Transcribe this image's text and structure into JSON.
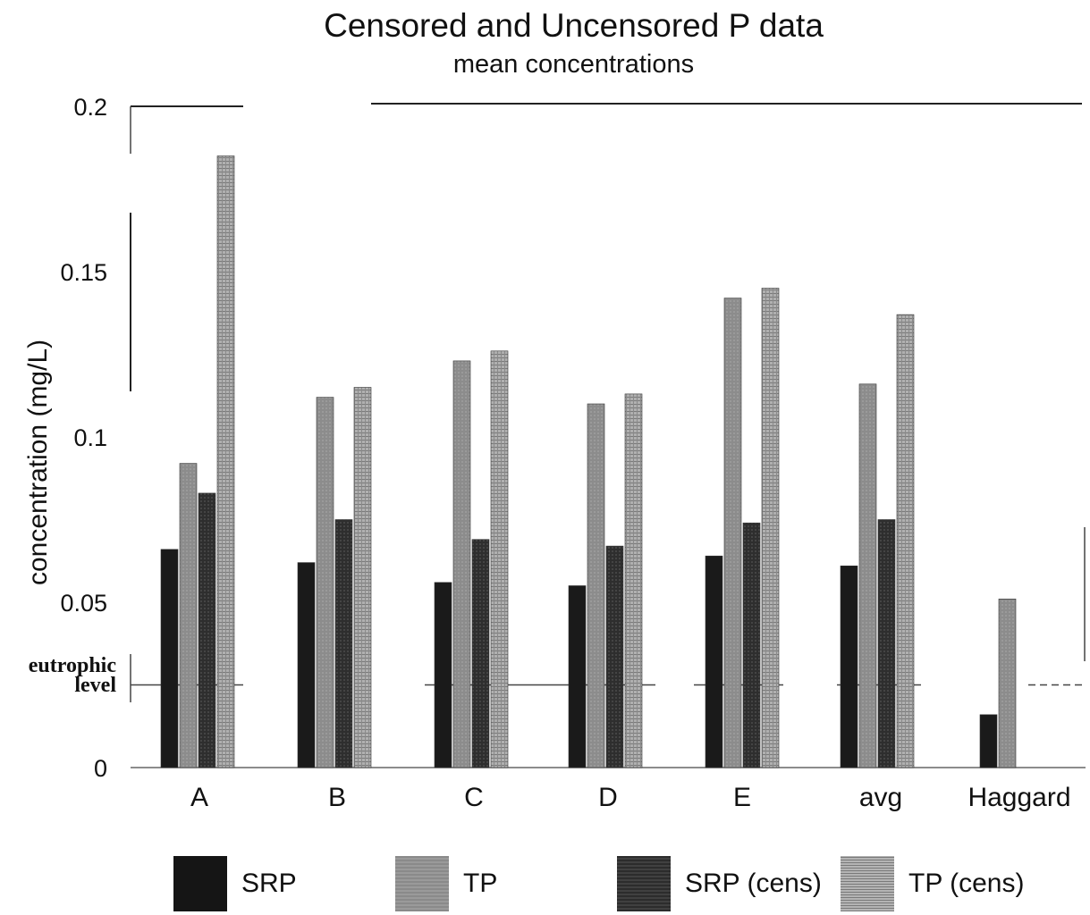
{
  "chart_data": {
    "type": "bar",
    "title": "Censored and Uncensored P data",
    "subtitle": "mean concentrations",
    "ylabel": "concentration (mg/L)",
    "xlabel": "",
    "ylim": [
      0,
      0.2
    ],
    "yticks": [
      "0",
      "0.05",
      "0.1",
      "0.15",
      "0.2"
    ],
    "categories": [
      "A",
      "B",
      "C",
      "D",
      "E",
      "avg",
      "Haggard"
    ],
    "series": [
      {
        "name": "SRP",
        "color": "#1c1c1c",
        "values": [
          0.066,
          0.062,
          0.056,
          0.055,
          0.064,
          0.061,
          0.016
        ]
      },
      {
        "name": "TP",
        "color": "#8a8a8a",
        "values": [
          0.092,
          0.112,
          0.123,
          0.11,
          0.142,
          0.116,
          0.051
        ]
      },
      {
        "name": "SRP (cens)",
        "color": "#333333",
        "values": [
          0.083,
          0.075,
          0.069,
          0.067,
          0.074,
          0.075,
          null
        ]
      },
      {
        "name": "TP (cens)",
        "color": "#9b9b9b",
        "values": [
          0.185,
          0.115,
          0.126,
          0.113,
          0.145,
          0.137,
          null
        ]
      }
    ],
    "reference_line": {
      "label": "eutrophic level",
      "value": 0.025,
      "style": "dashed"
    },
    "grid": false,
    "legend_position": "bottom"
  }
}
